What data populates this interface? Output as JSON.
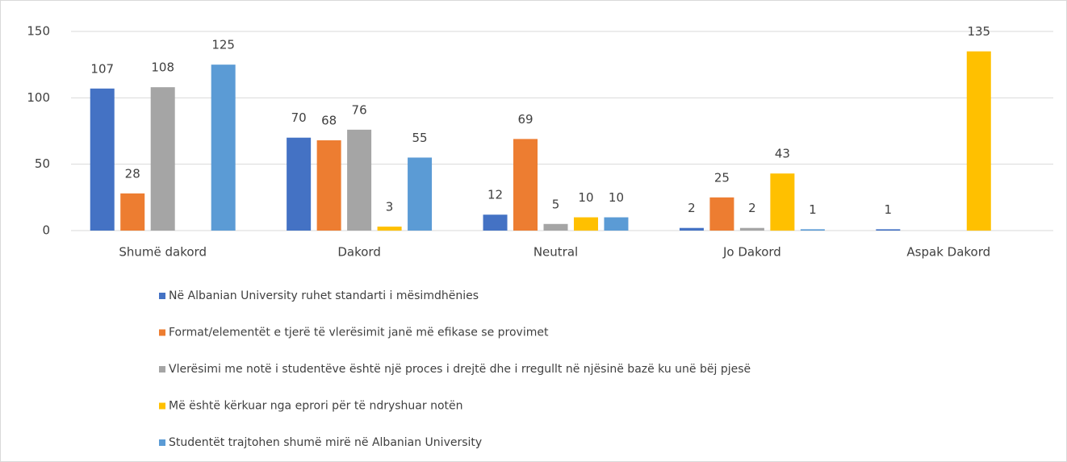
{
  "chart_data": {
    "type": "bar",
    "categories": [
      "Shumë dakord",
      "Dakord",
      "Neutral",
      "Jo Dakord",
      "Aspak Dakord"
    ],
    "series": [
      {
        "name": "Në Albanian University ruhet standarti i mësimdhënies",
        "color": "#4472c4",
        "values": [
          107,
          70,
          12,
          2,
          1
        ]
      },
      {
        "name": "Format/elementët e tjerë të vlerësimit janë më efikase se provimet",
        "color": "#ed7d31",
        "values": [
          28,
          68,
          69,
          25,
          null
        ]
      },
      {
        "name": "Vlerësimi me notë i studentëve është një proces i drejtë dhe i rregullt në njësinë bazë ku unë bëj pjesë",
        "color": "#a5a5a5",
        "values": [
          108,
          76,
          5,
          2,
          null
        ]
      },
      {
        "name": "Më është kërkuar nga eprori për të ndryshuar notën",
        "color": "#ffc000",
        "values": [
          null,
          3,
          10,
          43,
          135
        ]
      },
      {
        "name": "Studentët trajtohen shumë mirë në Albanian University",
        "color": "#5b9bd5",
        "values": [
          125,
          55,
          10,
          1,
          null
        ]
      }
    ],
    "ylim": [
      0,
      150
    ],
    "yticks": [
      0,
      50,
      100,
      150
    ],
    "grid": true,
    "legend": "bottom"
  }
}
